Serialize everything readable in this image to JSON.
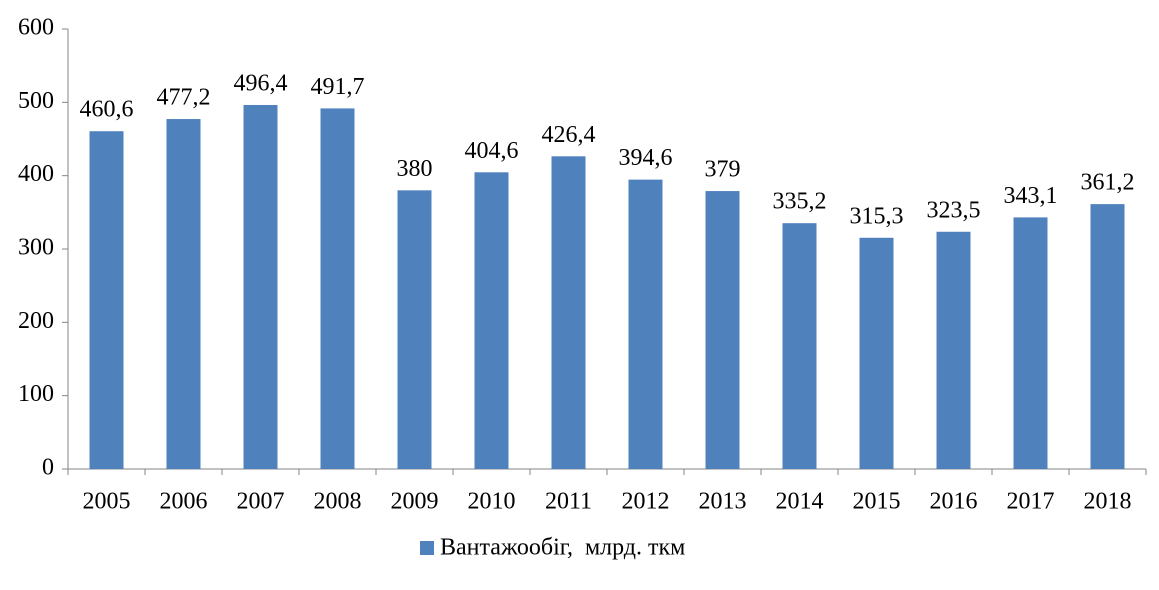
{
  "chart_data": {
    "type": "bar",
    "categories": [
      "2005",
      "2006",
      "2007",
      "2008",
      "2009",
      "2010",
      "2011",
      "2012",
      "2013",
      "2014",
      "2015",
      "2016",
      "2017",
      "2018"
    ],
    "series": [
      {
        "name": "Вантажообіг,  млрд. ткм",
        "color": "#4f81bd",
        "values": [
          460.6,
          477.2,
          496.4,
          491.7,
          380,
          404.6,
          426.4,
          394.6,
          379,
          335.2,
          315.3,
          323.5,
          343.1,
          361.2
        ],
        "value_labels": [
          "460,6",
          "477,2",
          "496,4",
          "491,7",
          "380",
          "404,6",
          "426,4",
          "394,6",
          "379",
          "335,2",
          "315,3",
          "323,5",
          "343,1",
          "361,2"
        ]
      }
    ],
    "ylim": [
      0,
      600
    ],
    "yticks": [
      0,
      100,
      200,
      300,
      400,
      500,
      600
    ],
    "grid": false,
    "legend": "bottom"
  }
}
